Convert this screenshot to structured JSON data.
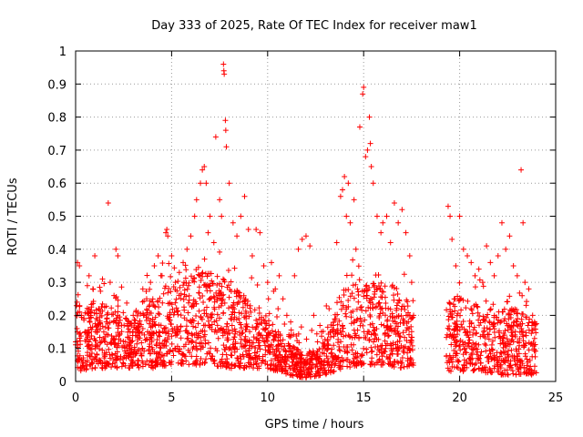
{
  "chart_data": {
    "type": "scatter",
    "title": "Day 333 of 2025, Rate Of TEC Index for receiver maw1",
    "xlabel": "GPS time / hours",
    "ylabel": "ROTI / TECUs",
    "xlim": [
      0,
      25
    ],
    "ylim": [
      0,
      1
    ],
    "x_ticks": [
      0,
      5,
      10,
      15,
      20,
      25
    ],
    "y_ticks": [
      0,
      0.1,
      0.2,
      0.3,
      0.4,
      0.5,
      0.6,
      0.7,
      0.8,
      0.9,
      1
    ],
    "x_tick_labels": [
      "0",
      "5",
      "10",
      "15",
      "20",
      "25"
    ],
    "y_tick_labels": [
      "0",
      "0.1",
      "0.2",
      "0.3",
      "0.4",
      "0.5",
      "0.6",
      "0.7",
      "0.8",
      "0.9",
      "1"
    ],
    "grid": true,
    "marker": "+",
    "color": "#ff0000",
    "series": [
      {
        "points": [
          [
            0.0,
            0.12
          ],
          [
            0.1,
            0.36
          ],
          [
            0.2,
            0.35
          ],
          [
            0.3,
            0.2
          ],
          [
            0.5,
            0.15
          ],
          [
            0.7,
            0.32
          ],
          [
            0.9,
            0.28
          ],
          [
            1.0,
            0.38
          ],
          [
            1.2,
            0.22
          ],
          [
            1.4,
            0.31
          ],
          [
            1.6,
            0.18
          ],
          [
            1.7,
            0.54
          ],
          [
            1.8,
            0.3
          ],
          [
            2.0,
            0.26
          ],
          [
            2.1,
            0.4
          ],
          [
            2.2,
            0.38
          ],
          [
            2.4,
            0.17
          ],
          [
            2.6,
            0.12
          ],
          [
            2.8,
            0.1
          ],
          [
            3.0,
            0.2
          ],
          [
            3.3,
            0.15
          ],
          [
            3.5,
            0.28
          ],
          [
            3.7,
            0.25
          ],
          [
            3.9,
            0.3
          ],
          [
            4.1,
            0.35
          ],
          [
            4.3,
            0.38
          ],
          [
            4.5,
            0.32
          ],
          [
            4.7,
            0.45
          ],
          [
            4.75,
            0.46
          ],
          [
            4.8,
            0.44
          ],
          [
            5.0,
            0.38
          ],
          [
            5.2,
            0.3
          ],
          [
            5.4,
            0.33
          ],
          [
            5.6,
            0.36
          ],
          [
            5.8,
            0.4
          ],
          [
            6.0,
            0.44
          ],
          [
            6.2,
            0.5
          ],
          [
            6.3,
            0.55
          ],
          [
            6.5,
            0.6
          ],
          [
            6.6,
            0.64
          ],
          [
            6.7,
            0.65
          ],
          [
            6.8,
            0.6
          ],
          [
            6.9,
            0.45
          ],
          [
            7.0,
            0.5
          ],
          [
            7.2,
            0.42
          ],
          [
            7.3,
            0.74
          ],
          [
            7.5,
            0.55
          ],
          [
            7.6,
            0.5
          ],
          [
            7.7,
            0.96
          ],
          [
            7.72,
            0.94
          ],
          [
            7.74,
            0.93
          ],
          [
            7.8,
            0.79
          ],
          [
            7.82,
            0.76
          ],
          [
            7.85,
            0.71
          ],
          [
            8.0,
            0.6
          ],
          [
            8.2,
            0.48
          ],
          [
            8.4,
            0.44
          ],
          [
            8.6,
            0.5
          ],
          [
            8.8,
            0.56
          ],
          [
            9.0,
            0.46
          ],
          [
            9.2,
            0.38
          ],
          [
            9.4,
            0.46
          ],
          [
            9.6,
            0.45
          ],
          [
            9.8,
            0.35
          ],
          [
            10.0,
            0.3
          ],
          [
            10.2,
            0.36
          ],
          [
            10.4,
            0.28
          ],
          [
            10.6,
            0.32
          ],
          [
            10.8,
            0.25
          ],
          [
            11.0,
            0.2
          ],
          [
            11.2,
            0.18
          ],
          [
            11.4,
            0.32
          ],
          [
            11.6,
            0.4
          ],
          [
            11.8,
            0.43
          ],
          [
            12.0,
            0.44
          ],
          [
            12.2,
            0.41
          ],
          [
            12.4,
            0.2
          ],
          [
            12.6,
            0.12
          ],
          [
            12.8,
            0.15
          ],
          [
            13.0,
            0.1
          ],
          [
            13.2,
            0.22
          ],
          [
            13.4,
            0.15
          ],
          [
            13.6,
            0.42
          ],
          [
            13.8,
            0.56
          ],
          [
            13.9,
            0.58
          ],
          [
            14.0,
            0.62
          ],
          [
            14.1,
            0.5
          ],
          [
            14.2,
            0.6
          ],
          [
            14.3,
            0.48
          ],
          [
            14.5,
            0.55
          ],
          [
            14.6,
            0.4
          ],
          [
            14.8,
            0.77
          ],
          [
            14.95,
            0.87
          ],
          [
            15.0,
            0.89
          ],
          [
            15.1,
            0.68
          ],
          [
            15.2,
            0.7
          ],
          [
            15.3,
            0.8
          ],
          [
            15.35,
            0.72
          ],
          [
            15.4,
            0.65
          ],
          [
            15.5,
            0.6
          ],
          [
            15.7,
            0.5
          ],
          [
            15.9,
            0.45
          ],
          [
            16.0,
            0.48
          ],
          [
            16.2,
            0.5
          ],
          [
            16.4,
            0.42
          ],
          [
            16.6,
            0.54
          ],
          [
            16.8,
            0.48
          ],
          [
            17.0,
            0.52
          ],
          [
            17.2,
            0.45
          ],
          [
            17.4,
            0.38
          ],
          [
            17.5,
            0.3
          ],
          [
            17.6,
            0.2
          ],
          [
            19.4,
            0.53
          ],
          [
            19.5,
            0.5
          ],
          [
            19.6,
            0.43
          ],
          [
            19.8,
            0.35
          ],
          [
            20.0,
            0.5
          ],
          [
            20.2,
            0.4
          ],
          [
            20.4,
            0.38
          ],
          [
            20.6,
            0.36
          ],
          [
            20.8,
            0.32
          ],
          [
            21.0,
            0.34
          ],
          [
            21.2,
            0.3
          ],
          [
            21.4,
            0.41
          ],
          [
            21.6,
            0.36
          ],
          [
            21.8,
            0.32
          ],
          [
            22.0,
            0.38
          ],
          [
            22.2,
            0.48
          ],
          [
            22.4,
            0.4
          ],
          [
            22.6,
            0.44
          ],
          [
            22.8,
            0.35
          ],
          [
            23.0,
            0.32
          ],
          [
            23.2,
            0.64
          ],
          [
            23.3,
            0.48
          ],
          [
            23.4,
            0.3
          ],
          [
            23.6,
            0.28
          ],
          [
            23.8,
            0.2
          ],
          [
            23.9,
            0.18
          ]
        ]
      }
    ],
    "density_envelope": {
      "x": [
        0,
        1,
        2,
        3,
        4,
        5,
        6,
        7,
        8,
        9,
        10,
        11,
        12,
        13,
        14,
        15,
        16,
        17,
        17.5,
        19.4,
        20,
        21,
        22,
        23,
        24
      ],
      "low": [
        0.03,
        0.04,
        0.04,
        0.04,
        0.04,
        0.05,
        0.05,
        0.05,
        0.04,
        0.04,
        0.04,
        0.02,
        0.01,
        0.02,
        0.04,
        0.05,
        0.05,
        0.04,
        0.05,
        0.03,
        0.03,
        0.03,
        0.02,
        0.02,
        0.02
      ],
      "high": [
        0.25,
        0.22,
        0.25,
        0.18,
        0.25,
        0.3,
        0.32,
        0.34,
        0.3,
        0.25,
        0.2,
        0.12,
        0.08,
        0.12,
        0.28,
        0.33,
        0.3,
        0.28,
        0.22,
        0.24,
        0.26,
        0.22,
        0.24,
        0.22,
        0.2
      ]
    }
  }
}
